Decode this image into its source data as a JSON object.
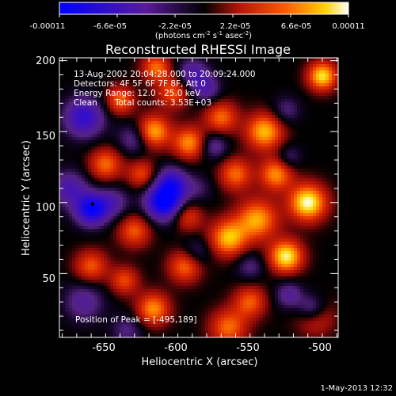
{
  "chart_data": {
    "type": "heatmap",
    "title": "Reconstructed RHESSI Image",
    "xlabel": "Heliocentric X (arcsec)",
    "ylabel": "Heliocentric Y (arcsec)",
    "xlim": [
      -677,
      -484
    ],
    "ylim": [
      5,
      202
    ],
    "x_ticks": [
      "-650",
      "-600",
      "-550",
      "-500"
    ],
    "x_tick_values": [
      -650,
      -600,
      -550,
      -500
    ],
    "y_ticks": [
      "200",
      "150",
      "100",
      "50"
    ],
    "y_tick_values": [
      200,
      150,
      100,
      50
    ],
    "colorbar": {
      "ticks": [
        "-0.00011",
        "-6.6e-05",
        "-2.2e-05",
        "2.2e-05",
        "6.6e-05",
        "0.00011"
      ],
      "tick_values": [
        -0.00011,
        -6.6e-05,
        -2.2e-05,
        2.2e-05,
        6.6e-05,
        0.00011
      ],
      "range": [
        -0.00011,
        0.00011
      ],
      "units_pre": "(photons cm",
      "units_exp1": "-2",
      "units_mid": " s",
      "units_exp2": "-1",
      "units_post": " asec",
      "units_exp3": "-2",
      "units_close": ")"
    },
    "annotations": {
      "time": "13-Aug-2002 20:04:28.000 to 20:09:24.000",
      "detectors": "Detectors: 4F 5F 6F 7F 8F, Att 0",
      "energy": "Energy Range: 12.0 - 25.0 keV",
      "clean": "Clean",
      "counts": "Total counts: 3.53E+03",
      "peak": "Position of Peak = [-495,189]"
    },
    "peak_position": [
      -495,
      189
    ],
    "image_blobs": [
      {
        "x": -505,
        "y": 100,
        "v": 1.0,
        "s": 9
      },
      {
        "x": -495,
        "y": 189,
        "v": 0.9,
        "s": 7
      },
      {
        "x": -520,
        "y": 62,
        "v": 0.95,
        "s": 8
      },
      {
        "x": -535,
        "y": 150,
        "v": 0.8,
        "s": 9
      },
      {
        "x": -527,
        "y": 120,
        "v": 0.7,
        "s": 8
      },
      {
        "x": -540,
        "y": 88,
        "v": 0.75,
        "s": 10
      },
      {
        "x": -555,
        "y": 120,
        "v": 0.6,
        "s": 8
      },
      {
        "x": -565,
        "y": 160,
        "v": 0.6,
        "s": 8
      },
      {
        "x": -560,
        "y": 75,
        "v": 0.8,
        "s": 9
      },
      {
        "x": -545,
        "y": 30,
        "v": 0.55,
        "s": 8
      },
      {
        "x": -560,
        "y": 12,
        "v": 0.6,
        "s": 9
      },
      {
        "x": -500,
        "y": 20,
        "v": 0.5,
        "s": 9
      },
      {
        "x": -587,
        "y": 142,
        "v": 0.7,
        "s": 8
      },
      {
        "x": -612,
        "y": 150,
        "v": 0.8,
        "s": 8
      },
      {
        "x": -598,
        "y": 178,
        "v": 0.55,
        "s": 8
      },
      {
        "x": -635,
        "y": 172,
        "v": 0.6,
        "s": 7
      },
      {
        "x": -645,
        "y": 127,
        "v": 0.6,
        "s": 8
      },
      {
        "x": -620,
        "y": 120,
        "v": 0.5,
        "s": 7
      },
      {
        "x": -625,
        "y": 80,
        "v": 0.55,
        "s": 8
      },
      {
        "x": -588,
        "y": 90,
        "v": 0.45,
        "s": 7
      },
      {
        "x": -612,
        "y": 25,
        "v": 0.7,
        "s": 8
      },
      {
        "x": -632,
        "y": 45,
        "v": 0.5,
        "s": 7
      },
      {
        "x": -655,
        "y": 55,
        "v": 0.55,
        "s": 8
      },
      {
        "x": -590,
        "y": 55,
        "v": 0.6,
        "s": 8
      },
      {
        "x": -610,
        "y": 195,
        "v": 0.6,
        "s": 7
      },
      {
        "x": -580,
        "y": 110,
        "v": -0.2,
        "s": 7
      },
      {
        "x": -595,
        "y": 110,
        "v": -0.2,
        "s": 8
      },
      {
        "x": -655,
        "y": 95,
        "v": -0.9,
        "s": 8
      },
      {
        "x": -605,
        "y": 100,
        "v": -1.0,
        "s": 9
      },
      {
        "x": -600,
        "y": 115,
        "v": -0.5,
        "s": 8
      },
      {
        "x": -625,
        "y": 145,
        "v": -0.4,
        "s": 8
      },
      {
        "x": -660,
        "y": 160,
        "v": -0.7,
        "s": 10
      },
      {
        "x": -670,
        "y": 110,
        "v": -0.5,
        "s": 9
      },
      {
        "x": -660,
        "y": 30,
        "v": -0.4,
        "s": 10
      },
      {
        "x": -640,
        "y": 100,
        "v": -0.4,
        "s": 8
      },
      {
        "x": -570,
        "y": 140,
        "v": -0.4,
        "s": 7
      },
      {
        "x": -582,
        "y": 65,
        "v": -0.3,
        "s": 7
      },
      {
        "x": -585,
        "y": 190,
        "v": -0.5,
        "s": 8
      },
      {
        "x": -575,
        "y": 180,
        "v": -0.4,
        "s": 7
      },
      {
        "x": -520,
        "y": 165,
        "v": -0.3,
        "s": 7
      },
      {
        "x": -502,
        "y": 25,
        "v": -0.6,
        "s": 7
      },
      {
        "x": -518,
        "y": 35,
        "v": -0.4,
        "s": 7
      },
      {
        "x": -518,
        "y": 132,
        "v": -0.3,
        "s": 6
      },
      {
        "x": -545,
        "y": 55,
        "v": -0.3,
        "s": 7
      },
      {
        "x": -630,
        "y": 10,
        "v": -0.3,
        "s": 8
      }
    ]
  },
  "footer": {
    "timestamp": "1-May-2013 12:32"
  }
}
